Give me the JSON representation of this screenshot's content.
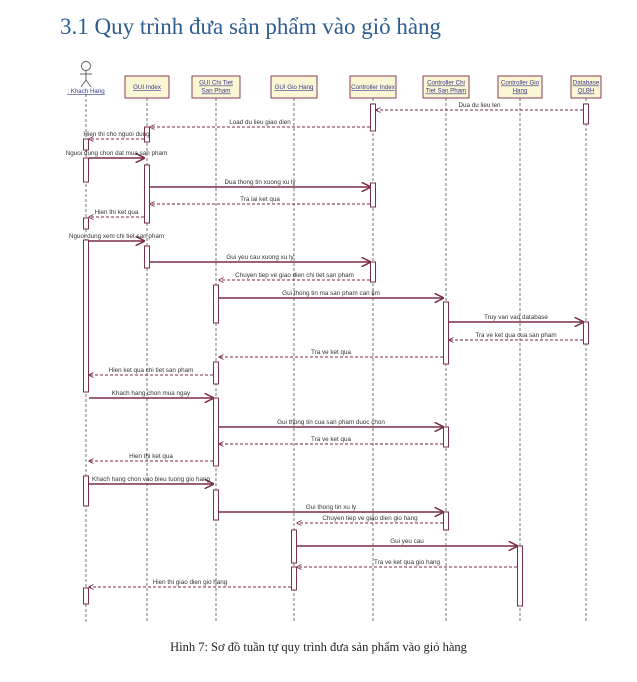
{
  "heading": "3.1 Quy trình đưa sản phẩm vào giỏ hàng",
  "caption": "Hình 7: Sơ đồ tuần tự quy trình đưa sản phẩm vào giỏ hàng",
  "participants": [
    {
      "id": "kh",
      "lines": [
        ": Khach Hang"
      ]
    },
    {
      "id": "gi",
      "lines": [
        "GUI Index"
      ]
    },
    {
      "id": "gc",
      "lines": [
        "GUI Chi Tiet",
        "San Pham"
      ]
    },
    {
      "id": "gg",
      "lines": [
        "GUI Gio Hang"
      ]
    },
    {
      "id": "ci",
      "lines": [
        "Controller Index"
      ]
    },
    {
      "id": "cc",
      "lines": [
        "Controller Chi",
        "Tiet San Pham"
      ]
    },
    {
      "id": "cg",
      "lines": [
        "Controller Gio",
        "Hang"
      ]
    },
    {
      "id": "db",
      "lines": [
        "Database",
        "QLBH"
      ]
    }
  ],
  "messages": [
    {
      "from": "db",
      "to": "ci",
      "label": "Dua du lieu len",
      "type": "return"
    },
    {
      "from": "ci",
      "to": "gi",
      "label": "Load du lieu giao dien",
      "type": "return"
    },
    {
      "from": "gi",
      "to": "kh",
      "label": "Hien thi cho nguoi dung",
      "type": "return"
    },
    {
      "from": "kh",
      "to": "gi",
      "label": "Nguoi dung chon dat mua san pham",
      "type": "call"
    },
    {
      "from": "gi",
      "to": "ci",
      "label": "Dua thong tin xuong xu ly",
      "type": "call"
    },
    {
      "from": "ci",
      "to": "gi",
      "label": "Tra lai ket qua",
      "type": "return"
    },
    {
      "from": "gi",
      "to": "kh",
      "label": "Hien thi ket qua",
      "type": "return"
    },
    {
      "from": "kh",
      "to": "gi",
      "label": "Nguoi dung xem chi tiet san pham",
      "type": "call"
    },
    {
      "from": "gi",
      "to": "ci",
      "label": "Gui yeu cau xuong xu ly",
      "type": "call"
    },
    {
      "from": "ci",
      "to": "gc",
      "label": "Chuyen tiep ve giao dien chi tiet san pham",
      "type": "return"
    },
    {
      "from": "gc",
      "to": "cc",
      "label": "Gui thong tin ma san pham can tim",
      "type": "call"
    },
    {
      "from": "cc",
      "to": "db",
      "label": "Truy van vao database",
      "type": "call"
    },
    {
      "from": "db",
      "to": "cc",
      "label": "Tra ve ket qua cua san pham",
      "type": "return"
    },
    {
      "from": "cc",
      "to": "gc",
      "label": "Tra ve ket qua",
      "type": "return"
    },
    {
      "from": "gc",
      "to": "kh",
      "label": "Hien ket qua chi tiet san pham",
      "type": "return"
    },
    {
      "from": "kh",
      "to": "gc",
      "label": "Khach hang chon mua ngay",
      "type": "call"
    },
    {
      "from": "gc",
      "to": "cc",
      "label": "Gui thong tin cua san pham duoc chon",
      "type": "call"
    },
    {
      "from": "cc",
      "to": "gc",
      "label": "Tra ve ket qua",
      "type": "return"
    },
    {
      "from": "gc",
      "to": "kh",
      "label": "Hien thi ket qua",
      "type": "return"
    },
    {
      "from": "kh",
      "to": "gc",
      "label": "Khach hang chon vao bieu tuong gio hang",
      "type": "call"
    },
    {
      "from": "gc",
      "to": "cc",
      "label": "Gui thong tin xu ly",
      "type": "call"
    },
    {
      "from": "cc",
      "to": "gg",
      "label": "Chuyen tiep ve giao dien gio hang",
      "type": "return"
    },
    {
      "from": "gg",
      "to": "cg",
      "label": "Gui yeu cau",
      "type": "call"
    },
    {
      "from": "cg",
      "to": "gg",
      "label": "Tra ve ket qua gio hang",
      "type": "return"
    },
    {
      "from": "gg",
      "to": "kh",
      "label": "Hien thi giao dien gio hang",
      "type": "return"
    }
  ],
  "colors": {
    "heading": "#2e5d8f",
    "header_fill": "#fbf6d3",
    "header_border": "#7a2e4a",
    "lifeline": "#555555",
    "activation": "#7a2e4a",
    "call_arrow": "#7a2e4a",
    "return_arrow": "#7a2e4a"
  }
}
